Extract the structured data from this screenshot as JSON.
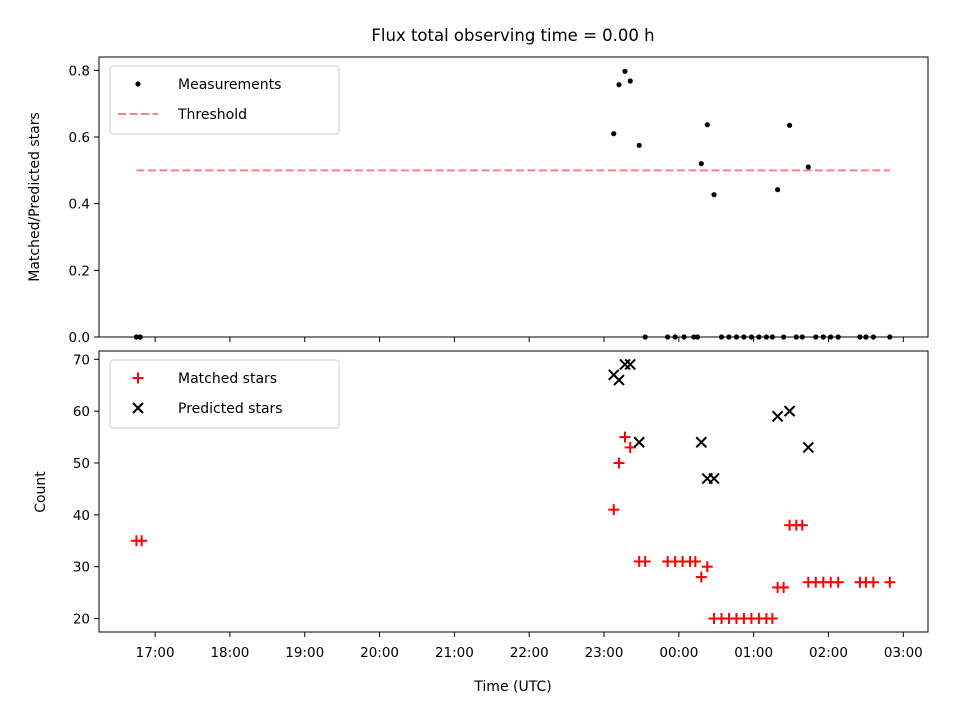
{
  "chart_data": [
    {
      "type": "scatter",
      "title": "Flux total observing time = 0.00 h",
      "xlabel": "",
      "ylabel": "Matched/Predicted stars",
      "xlim": [
        16.25,
        27.33
      ],
      "ylim": [
        0.0,
        0.84
      ],
      "yticks": [
        0.0,
        0.2,
        0.4,
        0.6,
        0.8
      ],
      "yticklabels": [
        "0.0",
        "0.2",
        "0.4",
        "0.6",
        "0.8"
      ],
      "legend": {
        "placement": "top-left",
        "entries": [
          "Measurements",
          "Threshold"
        ]
      },
      "series": [
        {
          "name": "Measurements",
          "marker": "dot",
          "color": "#000000",
          "points": [
            [
              16.75,
              0.0
            ],
            [
              16.8,
              0.0
            ],
            [
              23.13,
              0.61
            ],
            [
              23.2,
              0.757
            ],
            [
              23.28,
              0.797
            ],
            [
              23.35,
              0.768
            ],
            [
              23.47,
              0.575
            ],
            [
              23.55,
              0.0
            ],
            [
              23.85,
              0.0
            ],
            [
              23.95,
              0.0
            ],
            [
              24.07,
              0.0
            ],
            [
              24.2,
              0.0
            ],
            [
              24.25,
              0.0
            ],
            [
              24.3,
              0.52
            ],
            [
              24.38,
              0.637
            ],
            [
              24.47,
              0.427
            ],
            [
              24.57,
              0.0
            ],
            [
              24.67,
              0.0
            ],
            [
              24.77,
              0.0
            ],
            [
              24.87,
              0.0
            ],
            [
              24.97,
              0.0
            ],
            [
              25.07,
              0.0
            ],
            [
              25.17,
              0.0
            ],
            [
              25.25,
              0.0
            ],
            [
              25.32,
              0.442
            ],
            [
              25.4,
              0.0
            ],
            [
              25.48,
              0.635
            ],
            [
              25.57,
              0.0
            ],
            [
              25.65,
              0.0
            ],
            [
              25.73,
              0.51
            ],
            [
              25.83,
              0.0
            ],
            [
              25.93,
              0.0
            ],
            [
              26.03,
              0.0
            ],
            [
              26.13,
              0.0
            ],
            [
              26.42,
              0.0
            ],
            [
              26.5,
              0.0
            ],
            [
              26.6,
              0.0
            ],
            [
              26.82,
              0.0
            ]
          ]
        },
        {
          "name": "Threshold",
          "style": "dashed-line",
          "color": "#ff7f7f",
          "points": [
            [
              16.75,
              0.5
            ],
            [
              26.82,
              0.5
            ]
          ]
        }
      ]
    },
    {
      "type": "scatter",
      "title": "",
      "xlabel": "Time (UTC)",
      "ylabel": "Count",
      "xlim": [
        16.25,
        27.33
      ],
      "ylim": [
        17.4,
        71.6
      ],
      "yticks": [
        20,
        30,
        40,
        50,
        60,
        70
      ],
      "yticklabels": [
        "20",
        "30",
        "40",
        "50",
        "60",
        "70"
      ],
      "xticks": [
        17,
        18,
        19,
        20,
        21,
        22,
        23,
        24,
        25,
        26,
        27
      ],
      "xticklabels": [
        "17:00",
        "18:00",
        "19:00",
        "20:00",
        "21:00",
        "22:00",
        "23:00",
        "00:00",
        "01:00",
        "02:00",
        "03:00"
      ],
      "legend": {
        "placement": "top-left",
        "entries": [
          "Matched stars",
          "Predicted stars"
        ]
      },
      "series": [
        {
          "name": "Matched stars",
          "marker": "plus",
          "color": "#ff0000",
          "points": [
            [
              16.75,
              35
            ],
            [
              16.82,
              35
            ],
            [
              23.13,
              41
            ],
            [
              23.2,
              50
            ],
            [
              23.28,
              55
            ],
            [
              23.35,
              53
            ],
            [
              23.47,
              31
            ],
            [
              23.55,
              31
            ],
            [
              23.85,
              31
            ],
            [
              23.95,
              31
            ],
            [
              24.05,
              31
            ],
            [
              24.15,
              31
            ],
            [
              24.22,
              31
            ],
            [
              24.3,
              28
            ],
            [
              24.38,
              30
            ],
            [
              24.47,
              20
            ],
            [
              24.57,
              20
            ],
            [
              24.67,
              20
            ],
            [
              24.77,
              20
            ],
            [
              24.87,
              20
            ],
            [
              24.97,
              20
            ],
            [
              25.07,
              20
            ],
            [
              25.17,
              20
            ],
            [
              25.25,
              20
            ],
            [
              25.32,
              26
            ],
            [
              25.4,
              26
            ],
            [
              25.48,
              38
            ],
            [
              25.57,
              38
            ],
            [
              25.65,
              38
            ],
            [
              25.73,
              27
            ],
            [
              25.83,
              27
            ],
            [
              25.93,
              27
            ],
            [
              26.03,
              27
            ],
            [
              26.13,
              27
            ],
            [
              26.42,
              27
            ],
            [
              26.5,
              27
            ],
            [
              26.6,
              27
            ],
            [
              26.82,
              27
            ]
          ]
        },
        {
          "name": "Predicted stars",
          "marker": "x",
          "color": "#000000",
          "points": [
            [
              23.13,
              67
            ],
            [
              23.2,
              66
            ],
            [
              23.28,
              69
            ],
            [
              23.35,
              69
            ],
            [
              23.47,
              54
            ],
            [
              24.3,
              54
            ],
            [
              24.38,
              47
            ],
            [
              24.47,
              47
            ],
            [
              25.32,
              59
            ],
            [
              25.48,
              60
            ],
            [
              25.73,
              53
            ]
          ]
        }
      ]
    }
  ]
}
